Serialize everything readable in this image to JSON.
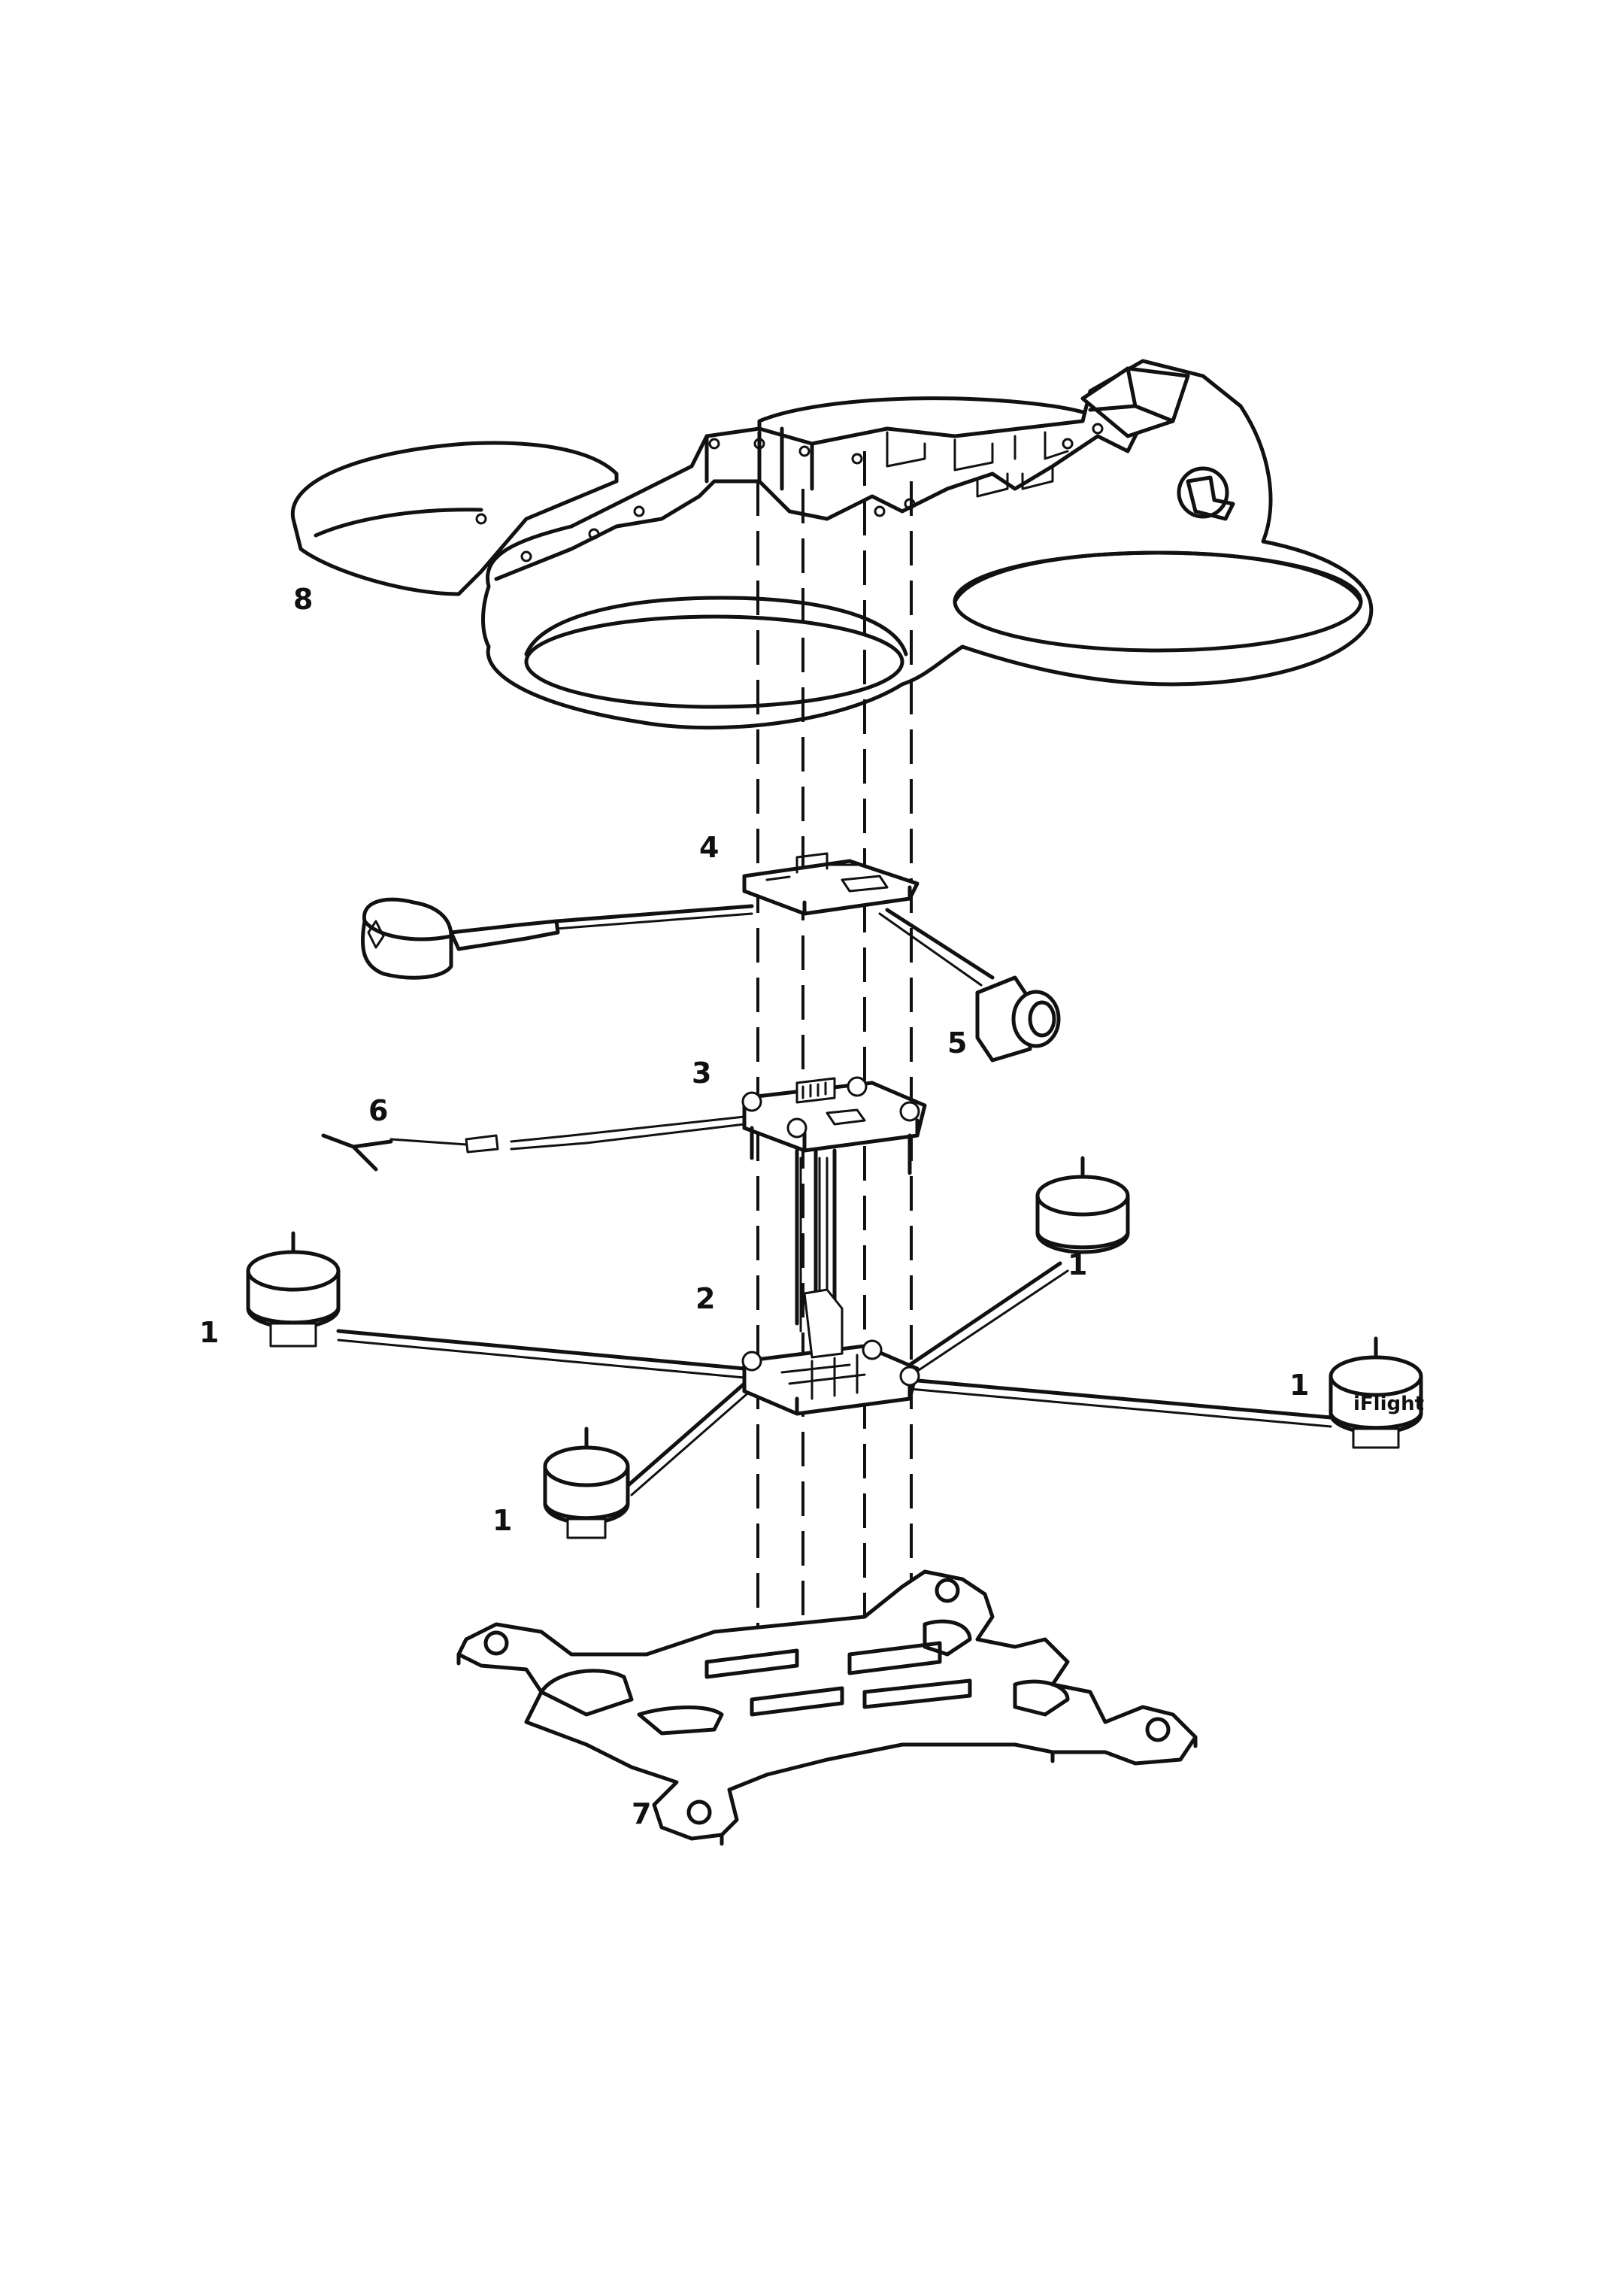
{
  "callouts": {
    "motor": "1",
    "esc_board": "2",
    "flight_controller": "3",
    "vtx": "4",
    "camera": "5",
    "receiver_antenna": "6",
    "bottom_frame": "7",
    "ducted_frame": "8"
  },
  "motor_brand": "iFlight"
}
